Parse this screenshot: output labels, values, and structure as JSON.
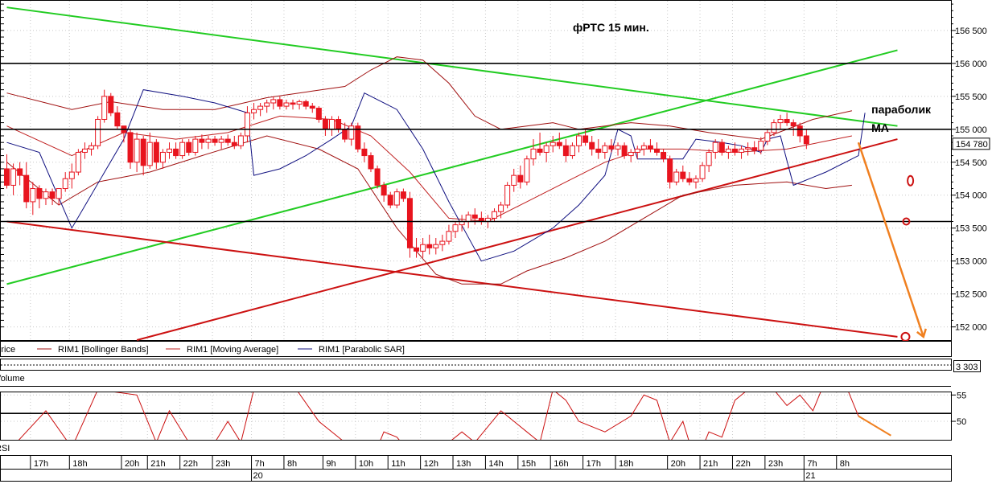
{
  "colors": {
    "candle_up": "#ffffff",
    "candle_down": "#e8141e",
    "candle_wick": "#e8141e",
    "bollinger": "#a01010",
    "moving_average": "#c02020",
    "parabolic_sar": "#101080",
    "trend_green": "#22cc22",
    "trend_red": "#cc1111",
    "level_line": "#000000",
    "forecast": "#f08020",
    "grid": "#c8c8c8",
    "price_tag_bg": "#ffffff",
    "rsi_line": "#cc1111"
  },
  "chart_data": {
    "type": "candlestick",
    "title": "фРТС   15 мин.",
    "price_axis": {
      "ylim": [
        151800,
        156950
      ],
      "ticks": [
        "156 500",
        "156 000",
        "155 500",
        "155 000",
        "154 500",
        "154 000",
        "153 500",
        "153 000",
        "152 500",
        "152 000"
      ],
      "tick_values": [
        156500,
        156000,
        155500,
        155000,
        154500,
        154000,
        153500,
        153000,
        152500,
        152000
      ],
      "current_price_label": "154 780",
      "current_price": 154780
    },
    "time_axis": {
      "hour_labels": [
        "17h",
        "18h",
        "20h",
        "21h",
        "22h",
        "23h",
        "7h",
        "8h",
        "9h",
        "10h",
        "11h",
        "12h",
        "13h",
        "14h",
        "15h",
        "16h",
        "17h",
        "18h",
        "20h",
        "21h",
        "22h",
        "23h",
        "7h",
        "8h"
      ],
      "hour_bar_index": [
        4,
        10,
        18,
        22,
        27,
        32,
        38,
        43,
        49,
        54,
        59,
        64,
        69,
        74,
        79,
        84,
        89,
        94,
        102,
        107,
        112,
        117,
        123,
        128
      ],
      "day_labels": [
        "20",
        "21"
      ],
      "day_bar_index": [
        38,
        123
      ]
    },
    "legend": [
      "Price",
      "RIM1 [Bollinger Bands]",
      "RIM1 [Moving Average]",
      "RIM1 [Parabolic SAR]"
    ],
    "volume_panel": {
      "label": "Volume",
      "value_label": "3 303"
    },
    "rsi_panel": {
      "label": "RSI",
      "ticks": [
        "55",
        "50"
      ],
      "tick_values": [
        55,
        50
      ],
      "level": 51.5,
      "ylim": [
        46.5,
        55.5
      ]
    },
    "levels": [
      156000,
      155000,
      153600
    ],
    "trendlines": {
      "green_upper": [
        [
          0,
          156850
        ],
        [
          137,
          155050
        ]
      ],
      "green_lower": [
        [
          0,
          152650
        ],
        [
          137,
          156200
        ]
      ],
      "red_upper": [
        [
          20,
          151800
        ],
        [
          137,
          154850
        ]
      ],
      "red_lower": [
        [
          0,
          153600
        ],
        [
          137,
          151850
        ]
      ]
    },
    "forecast_arrow": [
      [
        131,
        154800
      ],
      [
        141,
        151850
      ]
    ],
    "rsi_forecast_arrow": [
      [
        131,
        51
      ],
      [
        136,
        47.3
      ]
    ],
    "annotations": [
      {
        "text": "параболик",
        "bar": 133,
        "price": 155240
      },
      {
        "text": "MA",
        "bar": 133,
        "price": 154960
      }
    ],
    "ohlc": [
      [
        154400,
        154620,
        154100,
        154150
      ],
      [
        154150,
        154480,
        154000,
        154400
      ],
      [
        154400,
        154500,
        154150,
        154300
      ],
      [
        154300,
        154500,
        153800,
        153900
      ],
      [
        153900,
        154200,
        153700,
        154100
      ],
      [
        154100,
        154150,
        153800,
        153950
      ],
      [
        153950,
        154100,
        153850,
        154050
      ],
      [
        154050,
        154100,
        153850,
        153950
      ],
      [
        153950,
        154100,
        153850,
        154100
      ],
      [
        154100,
        154350,
        154050,
        154250
      ],
      [
        154250,
        154480,
        154100,
        154350
      ],
      [
        154350,
        154700,
        154300,
        154650
      ],
      [
        154650,
        154800,
        154550,
        154700
      ],
      [
        154700,
        154800,
        154600,
        154750
      ],
      [
        154750,
        155200,
        154700,
        155150
      ],
      [
        155150,
        155600,
        155100,
        155500
      ],
      [
        155500,
        155550,
        155200,
        155250
      ],
      [
        155250,
        155350,
        155000,
        155050
      ],
      [
        155050,
        155050,
        154800,
        154950
      ],
      [
        154950,
        155000,
        154400,
        154500
      ],
      [
        154500,
        154950,
        154350,
        154850
      ],
      [
        154850,
        154900,
        154300,
        154450
      ],
      [
        154450,
        154950,
        154400,
        154800
      ],
      [
        154800,
        154850,
        154400,
        154500
      ],
      [
        154500,
        154700,
        154400,
        154650
      ],
      [
        154650,
        154800,
        154550,
        154700
      ],
      [
        154700,
        154800,
        154550,
        154600
      ],
      [
        154600,
        154850,
        154550,
        154800
      ],
      [
        154800,
        154850,
        154600,
        154650
      ],
      [
        154650,
        154900,
        154600,
        154850
      ],
      [
        154850,
        154920,
        154700,
        154800
      ],
      [
        154800,
        154900,
        154700,
        154850
      ],
      [
        154850,
        154900,
        154750,
        154800
      ],
      [
        154800,
        154900,
        154700,
        154850
      ],
      [
        154850,
        154920,
        154750,
        154800
      ],
      [
        154800,
        154900,
        154700,
        154750
      ],
      [
        154750,
        154950,
        154700,
        154900
      ],
      [
        154900,
        155350,
        154800,
        155250
      ],
      [
        155250,
        155400,
        155150,
        155300
      ],
      [
        155300,
        155400,
        155200,
        155350
      ],
      [
        155350,
        155450,
        155250,
        155400
      ],
      [
        155400,
        155500,
        155300,
        155450
      ],
      [
        155450,
        155500,
        155300,
        155350
      ],
      [
        155350,
        155450,
        155300,
        155400
      ],
      [
        155400,
        155450,
        155300,
        155380
      ],
      [
        155380,
        155450,
        155300,
        155420
      ],
      [
        155420,
        155450,
        155300,
        155350
      ],
      [
        155350,
        155400,
        155250,
        155320
      ],
      [
        155320,
        155350,
        155100,
        155150
      ],
      [
        155150,
        155200,
        154900,
        155000
      ],
      [
        155000,
        155200,
        154900,
        155150
      ],
      [
        155150,
        155200,
        154950,
        155000
      ],
      [
        155000,
        155100,
        154800,
        154850
      ],
      [
        154850,
        155100,
        154750,
        155050
      ],
      [
        155050,
        155100,
        154650,
        154700
      ],
      [
        154700,
        154800,
        154500,
        154600
      ],
      [
        154600,
        154650,
        154350,
        154400
      ],
      [
        154400,
        154450,
        154100,
        154150
      ],
      [
        154150,
        154200,
        153900,
        154000
      ],
      [
        154000,
        154050,
        153800,
        153850
      ],
      [
        153850,
        154100,
        153800,
        154050
      ],
      [
        154050,
        154100,
        153900,
        153950
      ],
      [
        153950,
        154050,
        153050,
        153200
      ],
      [
        153200,
        153350,
        153050,
        153150
      ],
      [
        153150,
        153350,
        153050,
        153250
      ],
      [
        153250,
        153400,
        153100,
        153200
      ],
      [
        153200,
        153350,
        153100,
        153250
      ],
      [
        153250,
        153400,
        153150,
        153300
      ],
      [
        153300,
        153550,
        153250,
        153450
      ],
      [
        153450,
        153600,
        153350,
        153550
      ],
      [
        153550,
        153700,
        153450,
        153600
      ],
      [
        153600,
        153750,
        153500,
        153700
      ],
      [
        153700,
        153800,
        153550,
        153650
      ],
      [
        153650,
        153750,
        153550,
        153600
      ],
      [
        153600,
        153700,
        153500,
        153650
      ],
      [
        153650,
        153800,
        153600,
        153750
      ],
      [
        153750,
        153900,
        153650,
        153850
      ],
      [
        153850,
        154200,
        153800,
        154150
      ],
      [
        154150,
        154400,
        154050,
        154300
      ],
      [
        154300,
        154450,
        154100,
        154200
      ],
      [
        154200,
        154600,
        154150,
        154550
      ],
      [
        154550,
        154850,
        154450,
        154700
      ],
      [
        154700,
        154950,
        154600,
        154650
      ],
      [
        154650,
        154800,
        154500,
        154750
      ],
      [
        154750,
        154900,
        154650,
        154800
      ],
      [
        154800,
        154950,
        154700,
        154750
      ],
      [
        154750,
        154850,
        154500,
        154600
      ],
      [
        154600,
        154800,
        154550,
        154750
      ],
      [
        154750,
        154950,
        154650,
        154900
      ],
      [
        154900,
        155000,
        154750,
        154800
      ],
      [
        154800,
        154900,
        154600,
        154700
      ],
      [
        154700,
        154850,
        154550,
        154650
      ],
      [
        154650,
        154800,
        154550,
        154750
      ],
      [
        154750,
        154850,
        154650,
        154700
      ],
      [
        154700,
        154800,
        154600,
        154750
      ],
      [
        154750,
        154800,
        154550,
        154600
      ],
      [
        154600,
        154700,
        154500,
        154650
      ],
      [
        154650,
        154750,
        154550,
        154700
      ],
      [
        154700,
        154800,
        154600,
        154750
      ],
      [
        154750,
        154850,
        154650,
        154700
      ],
      [
        154700,
        154800,
        154600,
        154650
      ],
      [
        154650,
        154700,
        154500,
        154550
      ],
      [
        154550,
        154600,
        154100,
        154200
      ],
      [
        154200,
        154400,
        154150,
        154350
      ],
      [
        154350,
        154450,
        154200,
        154250
      ],
      [
        154250,
        154350,
        154150,
        154200
      ],
      [
        154200,
        154300,
        154100,
        154250
      ],
      [
        154250,
        154500,
        154200,
        154450
      ],
      [
        154450,
        154700,
        154350,
        154650
      ],
      [
        154650,
        154850,
        154550,
        154800
      ],
      [
        154800,
        154850,
        154600,
        154650
      ],
      [
        154650,
        154750,
        154550,
        154700
      ],
      [
        154700,
        154800,
        154600,
        154650
      ],
      [
        154650,
        154750,
        154550,
        154700
      ],
      [
        154700,
        154800,
        154600,
        154720
      ],
      [
        154720,
        154820,
        154620,
        154680
      ],
      [
        154680,
        154880,
        154620,
        154820
      ],
      [
        154820,
        155000,
        154760,
        154950
      ],
      [
        154950,
        155150,
        154900,
        155100
      ],
      [
        155100,
        155220,
        155000,
        155150
      ],
      [
        155150,
        155250,
        155050,
        155100
      ],
      [
        155100,
        155150,
        154900,
        155050
      ],
      [
        155050,
        155100,
        154800,
        154900
      ],
      [
        154900,
        155000,
        154700,
        154780
      ]
    ],
    "bollinger_upper": [
      [
        0,
        155550
      ],
      [
        10,
        155300
      ],
      [
        16,
        155420
      ],
      [
        24,
        155300
      ],
      [
        32,
        155300
      ],
      [
        40,
        155480
      ],
      [
        47,
        155580
      ],
      [
        52,
        155650
      ],
      [
        56,
        155900
      ],
      [
        60,
        156100
      ],
      [
        64,
        156050
      ],
      [
        68,
        155700
      ],
      [
        72,
        155200
      ],
      [
        76,
        155000
      ],
      [
        80,
        155050
      ],
      [
        84,
        155100
      ],
      [
        88,
        155000
      ],
      [
        92,
        155050
      ],
      [
        96,
        155100
      ],
      [
        102,
        155050
      ],
      [
        108,
        154950
      ],
      [
        116,
        154850
      ],
      [
        124,
        155150
      ],
      [
        130,
        155280
      ]
    ],
    "bollinger_lower": [
      [
        0,
        154500
      ],
      [
        8,
        153850
      ],
      [
        14,
        154200
      ],
      [
        22,
        154350
      ],
      [
        30,
        154600
      ],
      [
        40,
        154900
      ],
      [
        48,
        154700
      ],
      [
        54,
        154400
      ],
      [
        60,
        153500
      ],
      [
        66,
        152800
      ],
      [
        70,
        152650
      ],
      [
        76,
        152650
      ],
      [
        80,
        152850
      ],
      [
        86,
        153050
      ],
      [
        92,
        153300
      ],
      [
        98,
        153650
      ],
      [
        104,
        154000
      ],
      [
        112,
        154150
      ],
      [
        120,
        154200
      ],
      [
        126,
        154100
      ],
      [
        130,
        154150
      ]
    ],
    "moving_average": [
      [
        0,
        155050
      ],
      [
        10,
        154600
      ],
      [
        18,
        154950
      ],
      [
        26,
        154850
      ],
      [
        34,
        154950
      ],
      [
        42,
        155200
      ],
      [
        50,
        155150
      ],
      [
        56,
        154900
      ],
      [
        62,
        154350
      ],
      [
        68,
        153650
      ],
      [
        74,
        153600
      ],
      [
        80,
        153900
      ],
      [
        86,
        154200
      ],
      [
        92,
        154500
      ],
      [
        98,
        154700
      ],
      [
        104,
        154700
      ],
      [
        112,
        154650
      ],
      [
        120,
        154700
      ],
      [
        126,
        154820
      ],
      [
        130,
        154900
      ]
    ],
    "parabolic_sar": [
      [
        0,
        154800
      ],
      [
        5,
        154650
      ],
      [
        10,
        153500
      ],
      [
        18,
        154850
      ],
      [
        21,
        155600
      ],
      [
        27,
        155500
      ],
      [
        32,
        155400
      ],
      [
        37,
        155250
      ],
      [
        38,
        154300
      ],
      [
        42,
        154400
      ],
      [
        46,
        154600
      ],
      [
        50,
        154850
      ],
      [
        53,
        155050
      ],
      [
        55,
        155550
      ],
      [
        60,
        155300
      ],
      [
        64,
        154700
      ],
      [
        68,
        153900
      ],
      [
        73,
        153000
      ],
      [
        78,
        153150
      ],
      [
        84,
        153500
      ],
      [
        88,
        153850
      ],
      [
        92,
        154300
      ],
      [
        94,
        155000
      ],
      [
        96,
        154900
      ],
      [
        97,
        154550
      ],
      [
        100,
        154550
      ],
      [
        104,
        154550
      ],
      [
        106,
        154850
      ],
      [
        110,
        154800
      ],
      [
        113,
        154750
      ],
      [
        116,
        154650
      ],
      [
        117,
        154850
      ],
      [
        119,
        154900
      ],
      [
        121,
        154150
      ],
      [
        126,
        154350
      ],
      [
        131,
        154600
      ],
      [
        132,
        155250
      ]
    ],
    "rsi": [
      [
        0,
        44
      ],
      [
        6,
        52
      ],
      [
        10,
        45
      ],
      [
        14,
        56
      ],
      [
        20,
        55
      ],
      [
        23,
        46
      ],
      [
        25,
        52
      ],
      [
        28,
        46
      ],
      [
        31,
        44
      ],
      [
        34,
        50
      ],
      [
        36,
        46
      ],
      [
        38,
        56
      ],
      [
        40,
        58
      ],
      [
        44,
        57
      ],
      [
        48,
        50
      ],
      [
        52,
        46
      ],
      [
        56,
        42
      ],
      [
        58,
        48
      ],
      [
        60,
        47
      ],
      [
        62,
        44
      ],
      [
        66,
        44
      ],
      [
        70,
        48
      ],
      [
        72,
        46
      ],
      [
        76,
        52
      ],
      [
        80,
        48
      ],
      [
        82,
        46
      ],
      [
        84,
        56
      ],
      [
        86,
        54
      ],
      [
        88,
        50
      ],
      [
        92,
        48
      ],
      [
        96,
        51
      ],
      [
        98,
        55
      ],
      [
        100,
        54
      ],
      [
        102,
        46
      ],
      [
        104,
        50
      ],
      [
        106,
        42
      ],
      [
        108,
        48
      ],
      [
        110,
        47
      ],
      [
        112,
        54
      ],
      [
        114,
        56
      ],
      [
        116,
        57
      ],
      [
        118,
        56
      ],
      [
        120,
        53
      ],
      [
        122,
        55
      ],
      [
        124,
        52
      ],
      [
        126,
        58
      ],
      [
        128,
        60
      ],
      [
        130,
        54
      ],
      [
        131,
        51
      ]
    ]
  }
}
